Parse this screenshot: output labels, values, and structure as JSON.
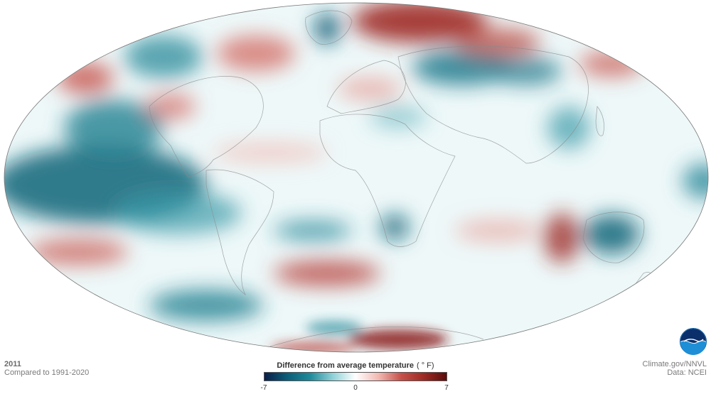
{
  "caption": {
    "year": "2011",
    "baseline": "Compared to 1991-2020"
  },
  "credits": {
    "site": "Climate.gov/NNVL",
    "data": "Data: NCEI"
  },
  "legend": {
    "title": "Difference from average temperature",
    "unit": "( ° F)",
    "min_label": "-7",
    "mid_label": "0",
    "max_label": "7",
    "colors": [
      "#0a1f4a",
      "#0b5e78",
      "#1f8a9a",
      "#8fd1d8",
      "#ffffff",
      "#f3b9b3",
      "#c7514a",
      "#9e2a24",
      "#5a0c0c"
    ]
  },
  "map": {
    "projection": "Mollweide",
    "anomaly_colors": {
      "cold_strong": "#0b6478",
      "cold": "#3a9aa8",
      "cold_light": "#bfe6ea",
      "neutral": "#ffffff",
      "warm_light": "#f6d0cb",
      "warm": "#d36a62",
      "warm_strong": "#8a1a14"
    },
    "logo": "noaa-logo"
  }
}
